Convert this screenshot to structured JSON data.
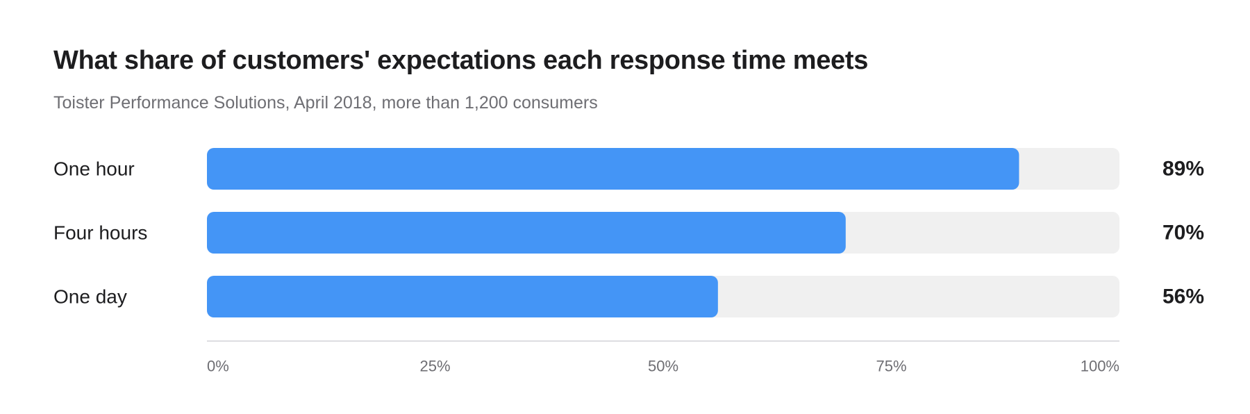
{
  "chart_data": {
    "type": "bar",
    "orientation": "horizontal",
    "title": "What share of customers' expectations each response time meets",
    "subtitle": "Toister Performance Solutions, April 2018, more than 1,200 consumers",
    "categories": [
      "One hour",
      "Four hours",
      "One day"
    ],
    "values": [
      89,
      70,
      56
    ],
    "value_labels": [
      "89%",
      "70%",
      "56%"
    ],
    "xlim": [
      0,
      100
    ],
    "x_ticks": [
      0,
      25,
      50,
      75,
      100
    ],
    "x_tick_labels": [
      "0%",
      "25%",
      "50%",
      "75%",
      "100%"
    ],
    "xlabel": "",
    "ylabel": "",
    "grid": false,
    "legend": "none",
    "colors": {
      "bar": "#4495f6",
      "track": "#f0f0f0",
      "axis": "#d2d2d7"
    }
  }
}
